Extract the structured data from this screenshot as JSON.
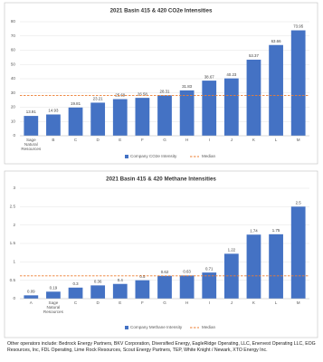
{
  "chart_data": [
    {
      "type": "bar",
      "title": "2021 Basin 415 & 420 CO2e Intensities",
      "categories": [
        "Sage Natural Resources",
        "B",
        "C",
        "D",
        "E",
        "F",
        "G",
        "H",
        "I",
        "J",
        "K",
        "L",
        "M"
      ],
      "series": [
        {
          "name": "Company CO2e Intensity",
          "color": "#4472c4",
          "values": [
            13.91,
            14.93,
            19.81,
            23.21,
            25.69,
            26.58,
            28.31,
            31.83,
            38.67,
            40.23,
            53.37,
            63.66,
            73.95
          ]
        }
      ],
      "median": {
        "name": "Median",
        "value": 28.31,
        "color": "#ed7d31"
      },
      "ylim": [
        0,
        80
      ],
      "yticks": [
        0,
        10,
        20,
        30,
        40,
        50,
        60,
        70,
        80
      ],
      "grid": true
    },
    {
      "type": "bar",
      "title": "2021 Basin 415 & 420 Methane Intensities",
      "categories": [
        "A",
        "Sage Natural Resources",
        "C",
        "D",
        "E",
        "F",
        "G",
        "H",
        "I",
        "J",
        "K",
        "L",
        "M"
      ],
      "series": [
        {
          "name": "Company Methane Intensity",
          "color": "#4472c4",
          "values": [
            0.09,
            0.19,
            0.3,
            0.36,
            0.4,
            0.5,
            0.62,
            0.63,
            0.71,
            1.22,
            1.74,
            1.75,
            2.5
          ]
        }
      ],
      "median": {
        "name": "Median",
        "value": 0.62,
        "color": "#ed7d31"
      },
      "ylim": [
        0,
        3
      ],
      "yticks": [
        0,
        0.5,
        1,
        1.5,
        2,
        2.5,
        3
      ],
      "grid": true
    }
  ],
  "footnote": "Other operators include: Bedrock Energy Partners, BKV Corporation, Diversified Energy, EagleRidge Operating, LLC, Enervest Operating LLC, EOG Resources, Inc, FDL Operating, Lime Rock Resources, Scout Energy Partners, TEP, White Knight / Newark, XTO Energy Inc."
}
